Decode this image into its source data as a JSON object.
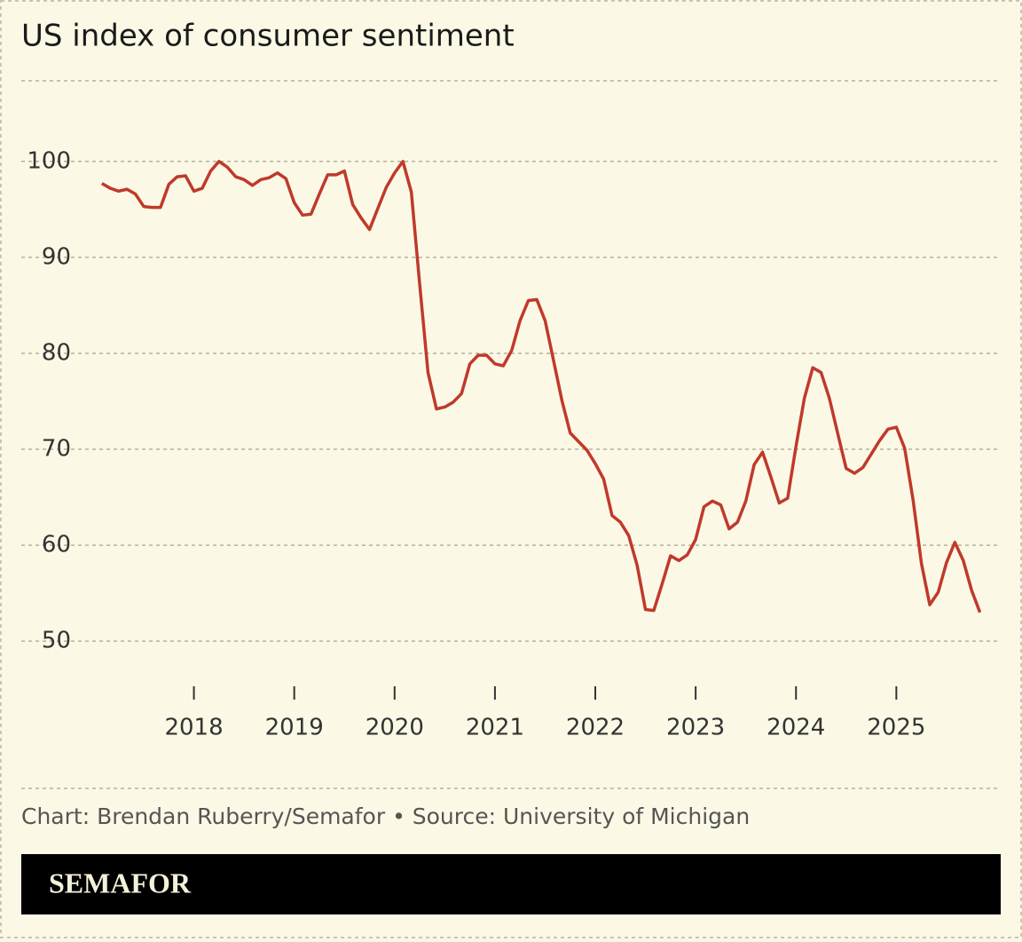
{
  "chart_data": {
    "type": "line",
    "title": "US index of consumer sentiment",
    "x": [
      2017.083,
      2017.167,
      2017.25,
      2017.333,
      2017.417,
      2017.5,
      2017.583,
      2017.667,
      2017.75,
      2017.833,
      2017.917,
      2018,
      2018.083,
      2018.167,
      2018.25,
      2018.333,
      2018.417,
      2018.5,
      2018.583,
      2018.667,
      2018.75,
      2018.833,
      2018.917,
      2019,
      2019.083,
      2019.167,
      2019.25,
      2019.333,
      2019.417,
      2019.5,
      2019.583,
      2019.667,
      2019.75,
      2019.833,
      2019.917,
      2020,
      2020.083,
      2020.167,
      2020.25,
      2020.333,
      2020.417,
      2020.5,
      2020.583,
      2020.667,
      2020.75,
      2020.833,
      2020.917,
      2021,
      2021.083,
      2021.167,
      2021.25,
      2021.333,
      2021.417,
      2021.5,
      2021.583,
      2021.667,
      2021.75,
      2021.833,
      2021.917,
      2022,
      2022.083,
      2022.167,
      2022.25,
      2022.333,
      2022.417,
      2022.5,
      2022.583,
      2022.667,
      2022.75,
      2022.833,
      2022.917,
      2023,
      2023.083,
      2023.167,
      2023.25,
      2023.333,
      2023.417,
      2023.5,
      2023.583,
      2023.667,
      2023.75,
      2023.833,
      2023.917,
      2024,
      2024.083,
      2024.167,
      2024.25,
      2024.333,
      2024.417,
      2024.5,
      2024.583,
      2024.667,
      2024.75,
      2024.833,
      2024.917,
      2025,
      2025.083,
      2025.167,
      2025.25,
      2025.333,
      2025.417,
      2025.5,
      2025.583,
      2025.667,
      2025.75,
      2025.833
    ],
    "series": [
      {
        "name": "Index of consumer sentiment",
        "color": "#c0392b",
        "values": [
          97.7,
          97.2,
          96.9,
          97.1,
          96.6,
          95.3,
          95.2,
          95.2,
          97.6,
          98.4,
          98.5,
          96.9,
          97.2,
          99.0,
          100,
          99.4,
          98.4,
          98.1,
          97.5,
          98.1,
          98.3,
          98.8,
          98.2,
          95.7,
          94.4,
          94.5,
          96.6,
          98.6,
          98.6,
          99.0,
          95.5,
          94.1,
          92.9,
          95.1,
          97.3,
          98.8,
          100,
          96.8,
          87.2,
          78.0,
          74.2,
          74.4,
          74.9,
          75.8,
          78.9,
          79.8,
          79.8,
          78.9,
          78.7,
          80.3,
          83.4,
          85.5,
          85.6,
          83.4,
          79.3,
          75.1,
          71.7,
          70.8,
          69.9,
          68.5,
          66.9,
          63.1,
          62.4,
          61.0,
          57.9,
          53.3,
          53.2,
          56.0,
          58.9,
          58.4,
          59.0,
          60.6,
          64.0,
          64.6,
          64.2,
          61.7,
          62.4,
          64.6,
          68.4,
          69.7,
          67.1,
          64.4,
          64.9,
          70.3,
          75.3,
          78.5,
          78.0,
          75.3,
          71.6,
          68.0,
          67.5,
          68.1,
          69.5,
          70.9,
          72.1,
          72.3,
          70.1,
          64.7,
          58.1,
          53.8,
          55.1,
          58.2,
          60.3,
          58.4,
          55.3,
          53.0
        ]
      }
    ],
    "xlim": [
      2016.28,
      2026.04
    ],
    "xticks": [
      2018,
      2019,
      2020,
      2021,
      2022,
      2023,
      2024,
      2025
    ],
    "ylim": [
      46.5,
      108.4
    ],
    "yticks": [
      50,
      60,
      70,
      80,
      90,
      100
    ],
    "grid": true
  },
  "source": "Chart: Brendan Ruberry/Semafor • Source: University of Michigan",
  "brand": "SEMAFOR"
}
